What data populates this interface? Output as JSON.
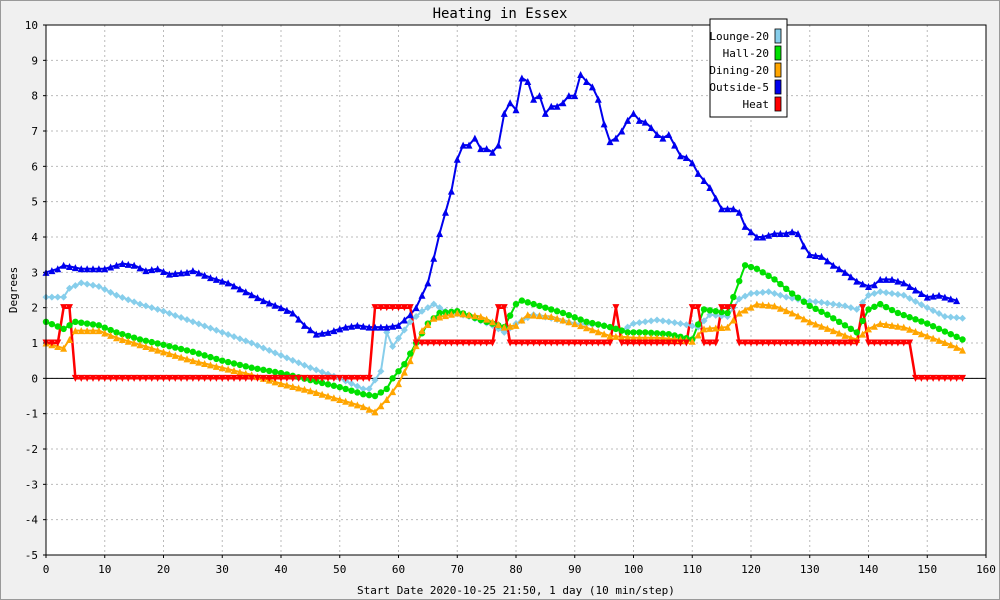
{
  "chart_data": {
    "type": "line",
    "title": "Heating in Essex",
    "xlabel": "Start Date 2020-10-25 21:50, 1 day (10 min/step)",
    "ylabel": "Degrees",
    "xlim": [
      0,
      160
    ],
    "ylim": [
      -5,
      10
    ],
    "x_ticks": [
      0,
      10,
      20,
      30,
      40,
      50,
      60,
      70,
      80,
      90,
      100,
      110,
      120,
      130,
      140,
      150,
      160
    ],
    "y_ticks": [
      -5,
      -4,
      -3,
      -2,
      -1,
      0,
      1,
      2,
      3,
      4,
      5,
      6,
      7,
      8,
      9,
      10
    ],
    "grid": true,
    "legend_position": "top-right",
    "series": [
      {
        "name": "Lounge-20",
        "color": "#87ceeb",
        "marker": "diamond",
        "points": [
          [
            0,
            2.3
          ],
          [
            3,
            2.3
          ],
          [
            4,
            2.55
          ],
          [
            6,
            2.7
          ],
          [
            9,
            2.6
          ],
          [
            12,
            2.35
          ],
          [
            16,
            2.1
          ],
          [
            20,
            1.9
          ],
          [
            25,
            1.6
          ],
          [
            30,
            1.3
          ],
          [
            35,
            1.0
          ],
          [
            40,
            0.65
          ],
          [
            45,
            0.3
          ],
          [
            50,
            0.0
          ],
          [
            54,
            -0.3
          ],
          [
            55,
            -0.3
          ],
          [
            57,
            0.2
          ],
          [
            58,
            1.3
          ],
          [
            59,
            0.9
          ],
          [
            62,
            1.6
          ],
          [
            64,
            1.9
          ],
          [
            66,
            2.1
          ],
          [
            68,
            1.9
          ],
          [
            72,
            1.75
          ],
          [
            76,
            1.5
          ],
          [
            78,
            1.3
          ],
          [
            80,
            1.55
          ],
          [
            83,
            1.8
          ],
          [
            86,
            1.7
          ],
          [
            90,
            1.55
          ],
          [
            95,
            1.5
          ],
          [
            98,
            1.35
          ],
          [
            100,
            1.55
          ],
          [
            104,
            1.65
          ],
          [
            108,
            1.55
          ],
          [
            111,
            1.45
          ],
          [
            113,
            1.8
          ],
          [
            116,
            1.75
          ],
          [
            118,
            2.25
          ],
          [
            120,
            2.4
          ],
          [
            123,
            2.45
          ],
          [
            126,
            2.3
          ],
          [
            129,
            2.2
          ],
          [
            132,
            2.15
          ],
          [
            136,
            2.05
          ],
          [
            138,
            1.95
          ],
          [
            140,
            2.35
          ],
          [
            142,
            2.45
          ],
          [
            146,
            2.35
          ],
          [
            150,
            2.0
          ],
          [
            153,
            1.75
          ],
          [
            156,
            1.7
          ]
        ]
      },
      {
        "name": "Hall-20",
        "color": "#00e000",
        "marker": "circle",
        "points": [
          [
            0,
            1.6
          ],
          [
            3,
            1.4
          ],
          [
            5,
            1.6
          ],
          [
            9,
            1.5
          ],
          [
            12,
            1.3
          ],
          [
            16,
            1.1
          ],
          [
            20,
            0.95
          ],
          [
            25,
            0.75
          ],
          [
            30,
            0.5
          ],
          [
            35,
            0.3
          ],
          [
            40,
            0.15
          ],
          [
            45,
            -0.05
          ],
          [
            50,
            -0.25
          ],
          [
            54,
            -0.45
          ],
          [
            56,
            -0.5
          ],
          [
            58,
            -0.3
          ],
          [
            59,
            0.0
          ],
          [
            61,
            0.4
          ],
          [
            63,
            1.0
          ],
          [
            65,
            1.55
          ],
          [
            67,
            1.85
          ],
          [
            70,
            1.9
          ],
          [
            74,
            1.65
          ],
          [
            78,
            1.45
          ],
          [
            80,
            2.1
          ],
          [
            81,
            2.2
          ],
          [
            84,
            2.05
          ],
          [
            88,
            1.85
          ],
          [
            92,
            1.6
          ],
          [
            96,
            1.45
          ],
          [
            99,
            1.3
          ],
          [
            102,
            1.3
          ],
          [
            106,
            1.25
          ],
          [
            110,
            1.1
          ],
          [
            112,
            1.95
          ],
          [
            116,
            1.85
          ],
          [
            117,
            2.3
          ],
          [
            119,
            3.2
          ],
          [
            121,
            3.1
          ],
          [
            124,
            2.8
          ],
          [
            127,
            2.4
          ],
          [
            130,
            2.05
          ],
          [
            133,
            1.8
          ],
          [
            136,
            1.5
          ],
          [
            138,
            1.3
          ],
          [
            140,
            1.95
          ],
          [
            142,
            2.1
          ],
          [
            145,
            1.85
          ],
          [
            150,
            1.55
          ],
          [
            154,
            1.25
          ],
          [
            156,
            1.1
          ]
        ]
      },
      {
        "name": "Dining-20",
        "color": "#ffa500",
        "marker": "triangle",
        "points": [
          [
            0,
            1.0
          ],
          [
            3,
            0.85
          ],
          [
            5,
            1.35
          ],
          [
            9,
            1.35
          ],
          [
            12,
            1.15
          ],
          [
            16,
            0.95
          ],
          [
            20,
            0.75
          ],
          [
            25,
            0.5
          ],
          [
            30,
            0.3
          ],
          [
            35,
            0.1
          ],
          [
            40,
            -0.15
          ],
          [
            45,
            -0.35
          ],
          [
            50,
            -0.6
          ],
          [
            54,
            -0.8
          ],
          [
            56,
            -0.95
          ],
          [
            58,
            -0.6
          ],
          [
            60,
            -0.15
          ],
          [
            62,
            0.5
          ],
          [
            64,
            1.35
          ],
          [
            66,
            1.7
          ],
          [
            70,
            1.85
          ],
          [
            74,
            1.75
          ],
          [
            78,
            1.45
          ],
          [
            80,
            1.5
          ],
          [
            82,
            1.8
          ],
          [
            86,
            1.75
          ],
          [
            90,
            1.55
          ],
          [
            96,
            1.2
          ],
          [
            100,
            1.15
          ],
          [
            104,
            1.15
          ],
          [
            108,
            1.1
          ],
          [
            110,
            1.05
          ],
          [
            112,
            1.4
          ],
          [
            116,
            1.45
          ],
          [
            118,
            1.85
          ],
          [
            121,
            2.1
          ],
          [
            124,
            2.05
          ],
          [
            127,
            1.85
          ],
          [
            130,
            1.6
          ],
          [
            134,
            1.35
          ],
          [
            137,
            1.15
          ],
          [
            138,
            1.1
          ],
          [
            140,
            1.4
          ],
          [
            142,
            1.55
          ],
          [
            146,
            1.45
          ],
          [
            150,
            1.2
          ],
          [
            154,
            0.95
          ],
          [
            156,
            0.8
          ]
        ]
      },
      {
        "name": "Outside-5",
        "color": "#0000ee",
        "marker": "triangle",
        "points": [
          [
            0,
            3.0
          ],
          [
            2,
            3.1
          ],
          [
            3,
            3.2
          ],
          [
            6,
            3.1
          ],
          [
            10,
            3.1
          ],
          [
            13,
            3.25
          ],
          [
            15,
            3.2
          ],
          [
            17,
            3.05
          ],
          [
            19,
            3.1
          ],
          [
            21,
            2.95
          ],
          [
            24,
            3.0
          ],
          [
            25,
            3.05
          ],
          [
            28,
            2.85
          ],
          [
            31,
            2.7
          ],
          [
            34,
            2.45
          ],
          [
            37,
            2.2
          ],
          [
            40,
            2.0
          ],
          [
            42,
            1.85
          ],
          [
            44,
            1.5
          ],
          [
            46,
            1.25
          ],
          [
            48,
            1.3
          ],
          [
            51,
            1.45
          ],
          [
            53,
            1.5
          ],
          [
            55,
            1.45
          ],
          [
            58,
            1.45
          ],
          [
            60,
            1.5
          ],
          [
            62,
            1.8
          ],
          [
            63,
            2.0
          ],
          [
            65,
            2.7
          ],
          [
            66,
            3.4
          ],
          [
            67,
            4.1
          ],
          [
            68,
            4.7
          ],
          [
            69,
            5.3
          ],
          [
            70,
            6.2
          ],
          [
            71,
            6.6
          ],
          [
            72,
            6.6
          ],
          [
            73,
            6.8
          ],
          [
            74,
            6.5
          ],
          [
            75,
            6.5
          ],
          [
            76,
            6.4
          ],
          [
            77,
            6.6
          ],
          [
            78,
            7.5
          ],
          [
            79,
            7.8
          ],
          [
            80,
            7.6
          ],
          [
            81,
            8.5
          ],
          [
            82,
            8.4
          ],
          [
            83,
            7.9
          ],
          [
            84,
            8.0
          ],
          [
            85,
            7.5
          ],
          [
            86,
            7.7
          ],
          [
            87,
            7.7
          ],
          [
            88,
            7.8
          ],
          [
            89,
            8.0
          ],
          [
            90,
            8.0
          ],
          [
            91,
            8.6
          ],
          [
            92,
            8.4
          ],
          [
            93,
            8.25
          ],
          [
            94,
            7.9
          ],
          [
            95,
            7.2
          ],
          [
            96,
            6.7
          ],
          [
            97,
            6.8
          ],
          [
            98,
            7.0
          ],
          [
            99,
            7.3
          ],
          [
            100,
            7.5
          ],
          [
            101,
            7.3
          ],
          [
            102,
            7.25
          ],
          [
            103,
            7.1
          ],
          [
            104,
            6.9
          ],
          [
            105,
            6.8
          ],
          [
            106,
            6.9
          ],
          [
            107,
            6.6
          ],
          [
            108,
            6.3
          ],
          [
            109,
            6.25
          ],
          [
            110,
            6.1
          ],
          [
            111,
            5.8
          ],
          [
            112,
            5.6
          ],
          [
            113,
            5.4
          ],
          [
            114,
            5.1
          ],
          [
            115,
            4.8
          ],
          [
            117,
            4.8
          ],
          [
            118,
            4.7
          ],
          [
            119,
            4.3
          ],
          [
            120,
            4.15
          ],
          [
            121,
            4.0
          ],
          [
            122,
            4.0
          ],
          [
            123,
            4.05
          ],
          [
            124,
            4.1
          ],
          [
            126,
            4.1
          ],
          [
            127,
            4.15
          ],
          [
            128,
            4.1
          ],
          [
            129,
            3.75
          ],
          [
            130,
            3.5
          ],
          [
            132,
            3.45
          ],
          [
            134,
            3.2
          ],
          [
            136,
            3.0
          ],
          [
            138,
            2.75
          ],
          [
            140,
            2.6
          ],
          [
            141,
            2.65
          ],
          [
            142,
            2.8
          ],
          [
            144,
            2.8
          ],
          [
            146,
            2.7
          ],
          [
            148,
            2.5
          ],
          [
            150,
            2.3
          ],
          [
            152,
            2.35
          ],
          [
            154,
            2.25
          ],
          [
            155,
            2.2
          ]
        ]
      },
      {
        "name": "Heat",
        "color": "#ff0000",
        "marker": "triangle-down",
        "points": [
          [
            0,
            1
          ],
          [
            2,
            1
          ],
          [
            3,
            2
          ],
          [
            4,
            2
          ],
          [
            5,
            0
          ],
          [
            54,
            0
          ],
          [
            55,
            0
          ],
          [
            56,
            2
          ],
          [
            61,
            2
          ],
          [
            62,
            2
          ],
          [
            63,
            1
          ],
          [
            76,
            1
          ],
          [
            77,
            2
          ],
          [
            78,
            2
          ],
          [
            79,
            1
          ],
          [
            96,
            1
          ],
          [
            97,
            2
          ],
          [
            98,
            1
          ],
          [
            109,
            1
          ],
          [
            110,
            2
          ],
          [
            111,
            2
          ],
          [
            112,
            1
          ],
          [
            114,
            1
          ],
          [
            115,
            2
          ],
          [
            117,
            2
          ],
          [
            118,
            1
          ],
          [
            138,
            1
          ],
          [
            139,
            2
          ],
          [
            140,
            1
          ],
          [
            147,
            1
          ],
          [
            148,
            0
          ],
          [
            156,
            0
          ]
        ]
      }
    ]
  }
}
